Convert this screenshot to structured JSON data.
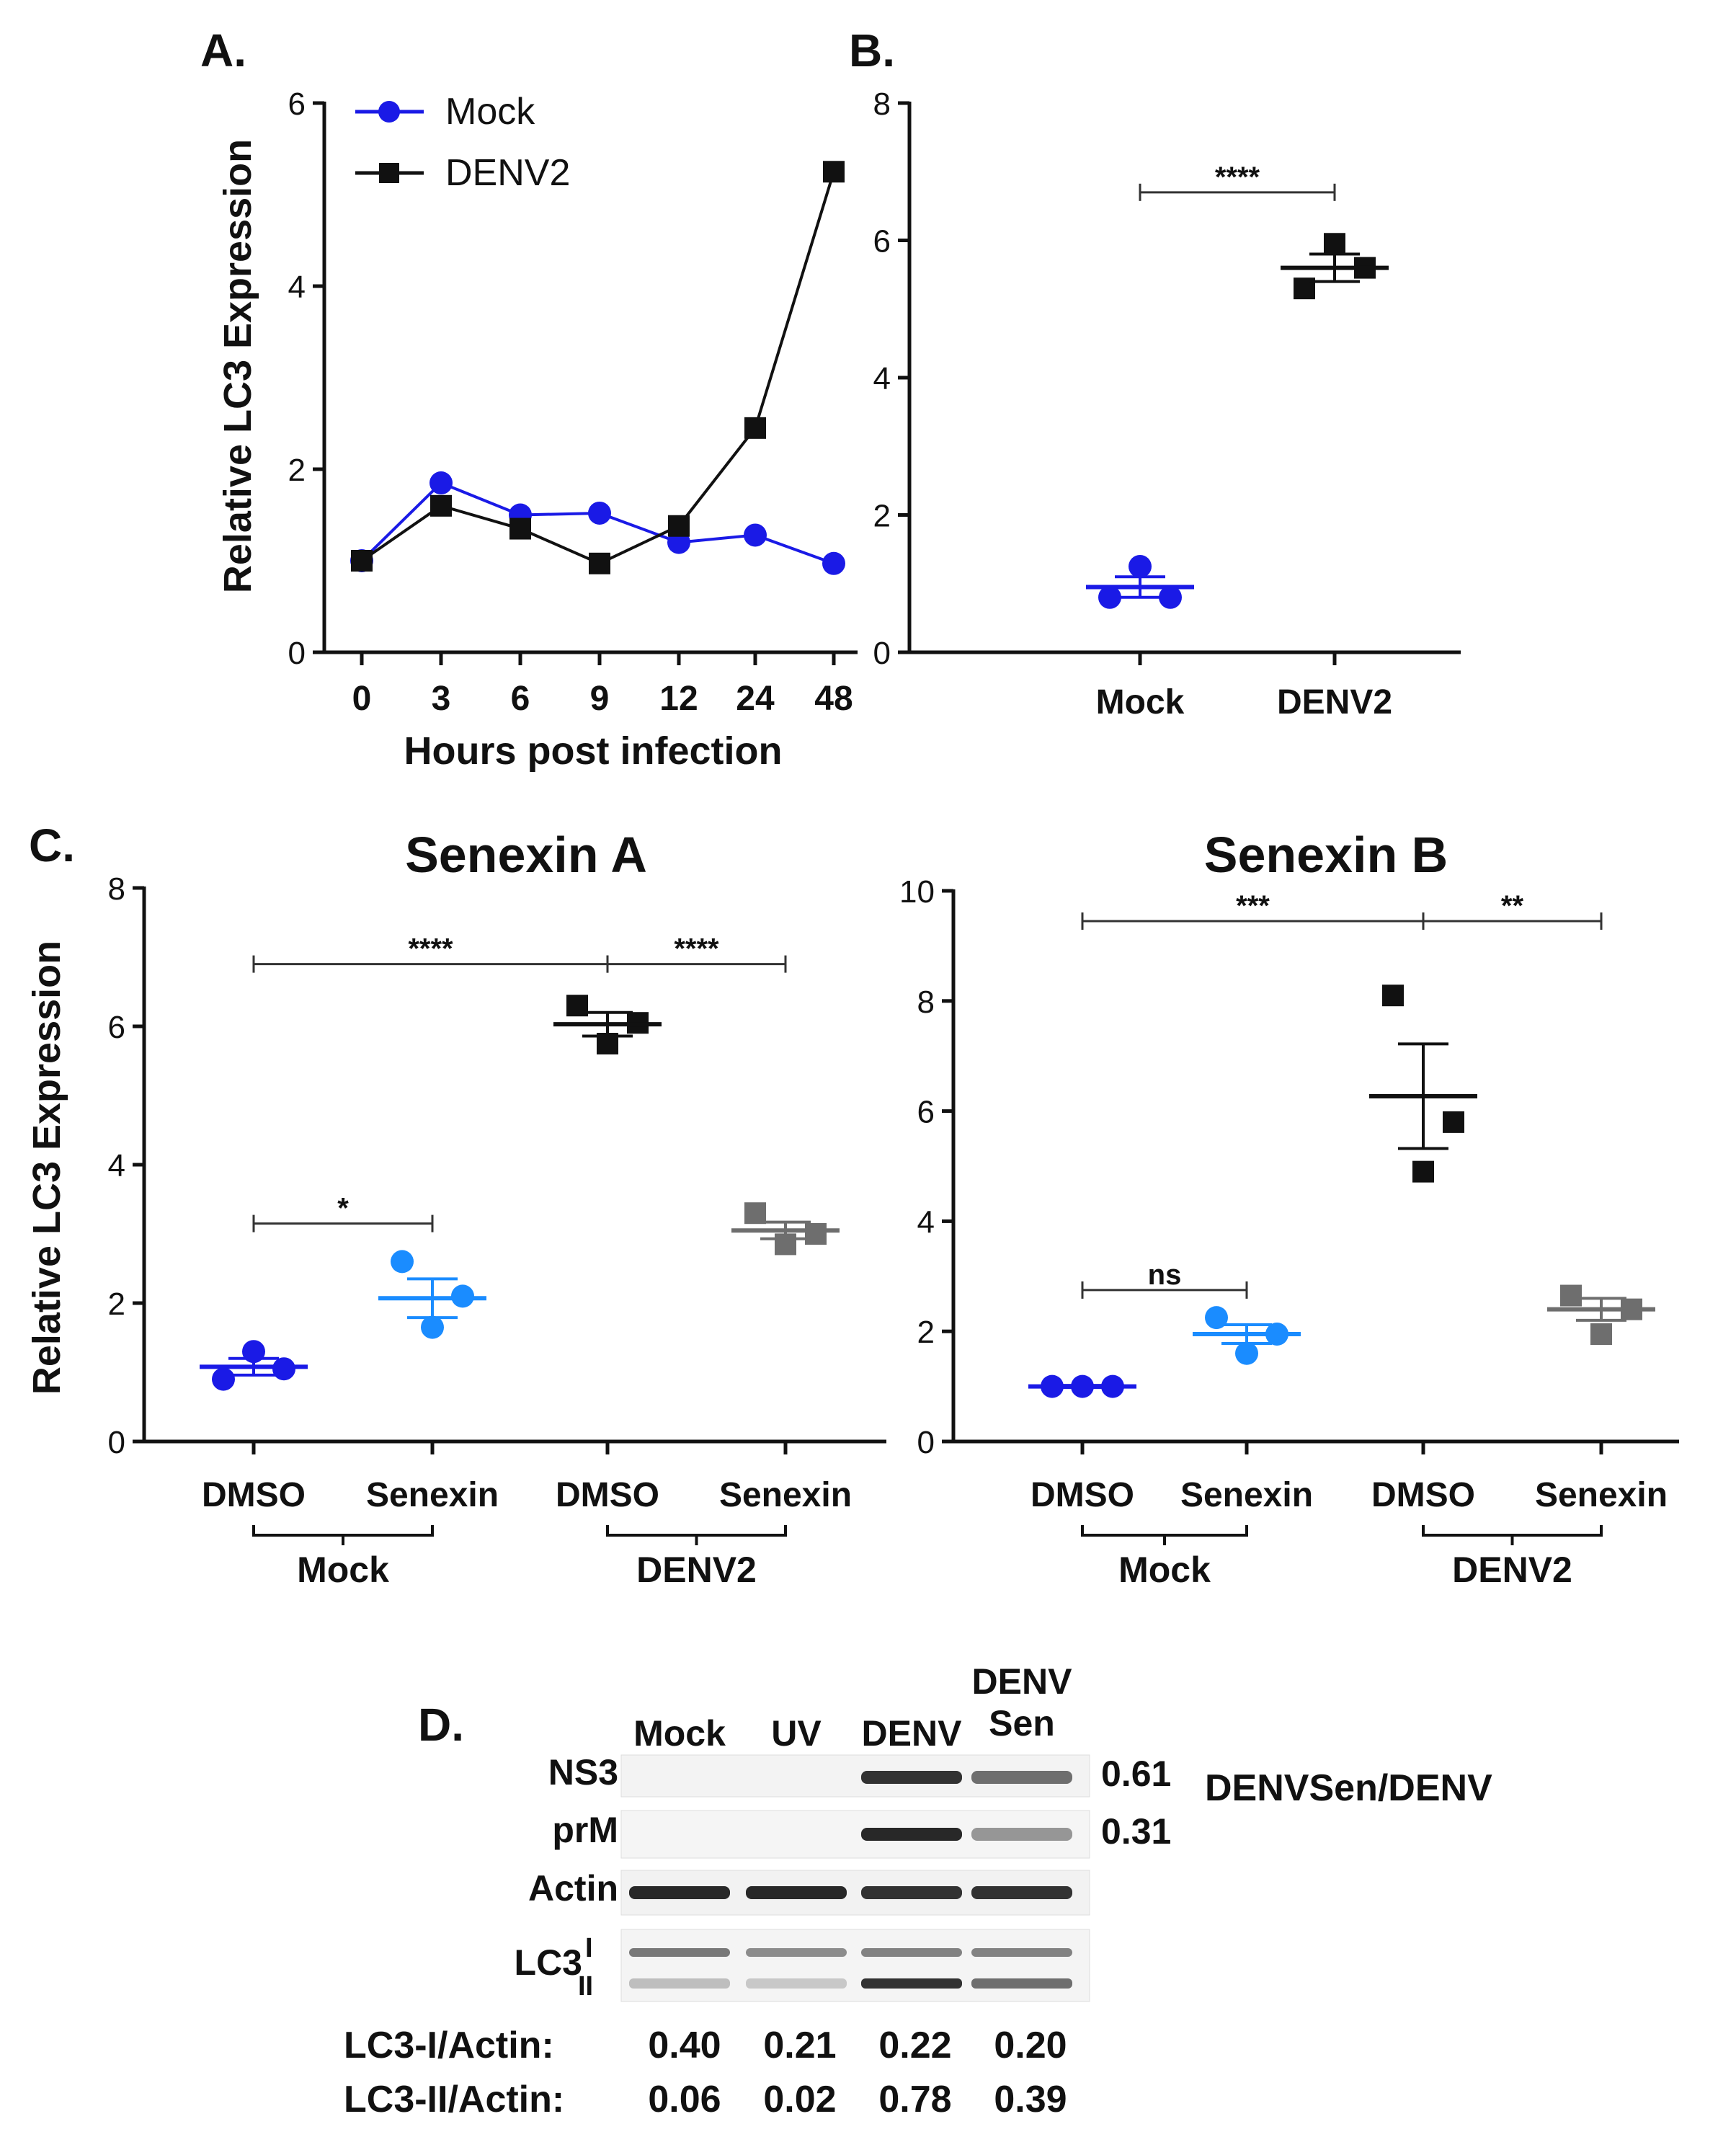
{
  "colors": {
    "mock": "#1a1ae6",
    "senexin_mock": "#1a8cff",
    "denv": "#111111",
    "senexin_denv": "#6e6e6e",
    "axis": "#111111"
  },
  "chart_data": [
    {
      "panel": "A.",
      "type": "line",
      "ylabel": "Relative LC3 Expression",
      "xlabel": "Hours post infection",
      "categories": [
        "0",
        "3",
        "6",
        "9",
        "12",
        "24",
        "48"
      ],
      "ylim": [
        0,
        6
      ],
      "yticks": [
        "0",
        "2",
        "4",
        "6"
      ],
      "series": [
        {
          "name": "Mock",
          "marker": "circle",
          "values": [
            1.0,
            1.85,
            1.5,
            1.52,
            1.2,
            1.28,
            0.97
          ]
        },
        {
          "name": "DENV2",
          "marker": "square",
          "values": [
            1.0,
            1.6,
            1.35,
            0.97,
            1.38,
            2.45,
            5.25
          ]
        }
      ]
    },
    {
      "panel": "B.",
      "type": "scatter",
      "ylim": [
        0,
        8
      ],
      "yticks": [
        "0",
        "2",
        "4",
        "6",
        "8"
      ],
      "groups": [
        {
          "label": "Mock",
          "marker": "circle",
          "points": [
            0.8,
            1.25,
            0.8
          ],
          "mean": 0.95,
          "sem": 0.15
        },
        {
          "label": "DENV2",
          "marker": "square",
          "points": [
            5.3,
            5.95,
            5.6
          ],
          "mean": 5.6,
          "sem": 0.2
        }
      ],
      "significance": [
        {
          "text": "****",
          "from": 0,
          "to": 1,
          "y": 6.7
        }
      ]
    },
    {
      "panel": "C.",
      "type": "scatter",
      "title": "Senexin A",
      "ylabel": "Relative LC3 Expression",
      "ylim": [
        0,
        8
      ],
      "yticks": [
        "0",
        "2",
        "4",
        "6",
        "8"
      ],
      "groups": [
        {
          "label": "DMSO",
          "marker": "circle",
          "points": [
            0.9,
            1.3,
            1.05
          ],
          "mean": 1.08,
          "sem": 0.12
        },
        {
          "label": "Senexin",
          "marker": "circle",
          "points": [
            2.6,
            1.65,
            2.1
          ],
          "mean": 2.07,
          "sem": 0.28
        },
        {
          "label": "DMSO",
          "marker": "square",
          "points": [
            6.3,
            5.75,
            6.05
          ],
          "mean": 6.03,
          "sem": 0.17
        },
        {
          "label": "Senexin",
          "marker": "square",
          "points": [
            3.3,
            2.85,
            3.0
          ],
          "mean": 3.05,
          "sem": 0.12
        }
      ],
      "brackets": [
        {
          "label": "Mock"
        },
        {
          "label": "DENV2"
        }
      ],
      "significance": [
        {
          "text": "****",
          "from": 0,
          "to": 2,
          "y": 6.9
        },
        {
          "text": "****",
          "from": 2,
          "to": 3,
          "y": 6.9
        },
        {
          "text": "*",
          "from": 0,
          "to": 1,
          "y": 3.15
        }
      ]
    },
    {
      "panel": "",
      "type": "scatter",
      "title": "Senexin B",
      "ylim": [
        0,
        10
      ],
      "yticks": [
        "0",
        "2",
        "4",
        "6",
        "8",
        "10"
      ],
      "groups": [
        {
          "label": "DMSO",
          "marker": "circle",
          "points": [
            1.0,
            1.0,
            1.0
          ],
          "mean": 1.0,
          "sem": 0.02
        },
        {
          "label": "Senexin",
          "marker": "circle",
          "points": [
            2.25,
            1.6,
            1.95
          ],
          "mean": 1.95,
          "sem": 0.17
        },
        {
          "label": "DMSO",
          "marker": "square",
          "points": [
            8.1,
            4.9,
            5.8
          ],
          "mean": 6.27,
          "sem": 0.95
        },
        {
          "label": "Senexin",
          "marker": "square",
          "points": [
            2.65,
            1.95,
            2.4
          ],
          "mean": 2.4,
          "sem": 0.2
        }
      ],
      "brackets": [
        {
          "label": "Mock"
        },
        {
          "label": "DENV2"
        }
      ],
      "significance": [
        {
          "text": "***",
          "from": 0,
          "to": 2,
          "y": 9.45
        },
        {
          "text": "**",
          "from": 2,
          "to": 3,
          "y": 9.45
        },
        {
          "text": "ns",
          "from": 0,
          "to": 1,
          "y": 2.75
        }
      ]
    }
  ],
  "blot": {
    "panel": "D.",
    "lanes": [
      "Mock",
      "UV",
      "DENV"
    ],
    "lane4": [
      "DENV",
      "Sen"
    ],
    "rows": [
      {
        "label": "NS3",
        "intensity": [
          0,
          0,
          0.9,
          0.6
        ]
      },
      {
        "label": "prM",
        "intensity": [
          0,
          0,
          0.95,
          0.4
        ]
      },
      {
        "label": "Actin",
        "intensity": [
          0.95,
          0.95,
          0.9,
          0.9
        ]
      }
    ],
    "lc3": {
      "label": "LC3",
      "sub_i": "I",
      "sub_ii": "II",
      "band_i": [
        0.55,
        0.45,
        0.5,
        0.5
      ],
      "band_ii": [
        0.2,
        0.15,
        0.9,
        0.6
      ]
    },
    "ratios": {
      "ns3": "0.61",
      "prm": "0.31",
      "label": "DENVSen/DENV"
    },
    "quant": [
      {
        "label": "LC3-I/Actin:",
        "values": [
          "0.40",
          "0.21",
          "0.22",
          "0.20"
        ]
      },
      {
        "label": "LC3-II/Actin:",
        "values": [
          "0.06",
          "0.02",
          "0.78",
          "0.39"
        ]
      }
    ]
  }
}
